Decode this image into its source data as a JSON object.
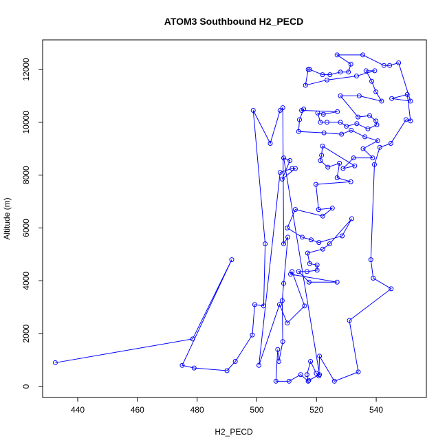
{
  "chart_data": {
    "type": "line",
    "title": "ATOM3 Southbound H2_PECD",
    "x_label": "H2_PECD",
    "y_label": "Altitude (m)",
    "x": [
      432.5,
      478.5,
      491.6,
      475,
      479,
      490,
      492.8,
      498.5,
      499.3,
      502.3,
      502.8,
      498.8,
      504.5,
      507.8,
      508.7,
      509,
      510.4,
      509,
      508.5,
      508.7,
      507.4,
      507,
      506.4,
      510.8,
      514.7,
      517.2,
      516.8,
      518,
      519.9,
      520.8,
      521,
      526,
      534,
      531,
      545,
      539,
      538.2,
      539.4,
      541.2,
      544.9,
      550,
      551.5,
      550.4,
      545.2,
      551.5,
      547.5,
      544.5,
      542.6,
      535.5,
      526.9,
      531.5,
      530.7,
      528,
      524.5,
      522,
      517.7,
      517.2,
      516.3,
      523.5,
      533.4,
      539.5,
      536.6,
      538.5,
      539.9,
      541.8,
      534.3,
      528,
      533.9,
      537.8,
      539.9,
      540.2,
      537.2,
      533.5,
      530,
      528,
      523.5,
      521.3,
      520.4,
      522.3,
      527,
      515,
      515.7,
      514.3,
      514,
      522.5,
      528.4,
      531.6,
      536.2,
      540.5,
      535.6,
      538.8,
      532.4,
      528.9,
      532.8,
      522,
      521.7,
      521.3,
      523.8,
      527.7,
      526.9,
      531.5,
      519.8,
      520.7,
      525.3,
      522.1,
      512.9,
      510.2,
      515.2,
      518.2,
      520.8,
      528.6,
      531.8,
      524.4,
      522.1,
      517,
      517.7,
      520.2,
      520.2,
      516.8,
      514,
      517.5,
      526.9,
      511.3,
      511.8,
      516,
      510.2,
      507.6,
      500.7,
      507.8,
      511.8,
      512.9,
      508.5,
      511.1,
      509,
      521,
      517.4
    ],
    "series": [
      {
        "color": "#0000ff",
        "values": [
          900,
          1800,
          4800,
          800,
          700,
          600,
          950,
          1950,
          3100,
          3050,
          5400,
          10450,
          9200,
          10450,
          10550,
          5400,
          5650,
          3900,
          3250,
          1700,
          950,
          1400,
          200,
          200,
          450,
          200,
          450,
          950,
          500,
          400,
          1150,
          200,
          550,
          2500,
          3700,
          4100,
          4800,
          8400,
          9050,
          9200,
          10100,
          10050,
          11050,
          10900,
          10800,
          12250,
          12150,
          12150,
          12550,
          12550,
          12200,
          11900,
          11900,
          11800,
          11800,
          12000,
          12000,
          11400,
          11600,
          11750,
          11950,
          11950,
          11550,
          11150,
          10800,
          11000,
          11000,
          10200,
          10250,
          10050,
          9900,
          9750,
          9950,
          9850,
          10000,
          10000,
          10000,
          10350,
          10300,
          10400,
          10450,
          10500,
          10100,
          9650,
          9600,
          9550,
          9700,
          9450,
          9300,
          9000,
          8650,
          8650,
          8250,
          8350,
          9100,
          8750,
          8550,
          8300,
          8450,
          7900,
          7750,
          7650,
          6700,
          6750,
          6450,
          6700,
          6000,
          5650,
          5550,
          5450,
          5700,
          6350,
          5400,
          5200,
          5050,
          4650,
          4600,
          4400,
          4350,
          4350,
          3950,
          3950,
          4250,
          4350,
          3050,
          2400,
          3100,
          800,
          8100,
          8250,
          8250,
          7850,
          8550,
          8650,
          450,
          230
        ]
      }
    ],
    "xlim": [
      428.25,
      556.8
    ],
    "ylim": [
      -416,
      13118
    ],
    "xticks": [
      440,
      460,
      480,
      500,
      520,
      540
    ],
    "yticks": [
      0,
      2000,
      4000,
      6000,
      8000,
      10000,
      12000
    ]
  }
}
